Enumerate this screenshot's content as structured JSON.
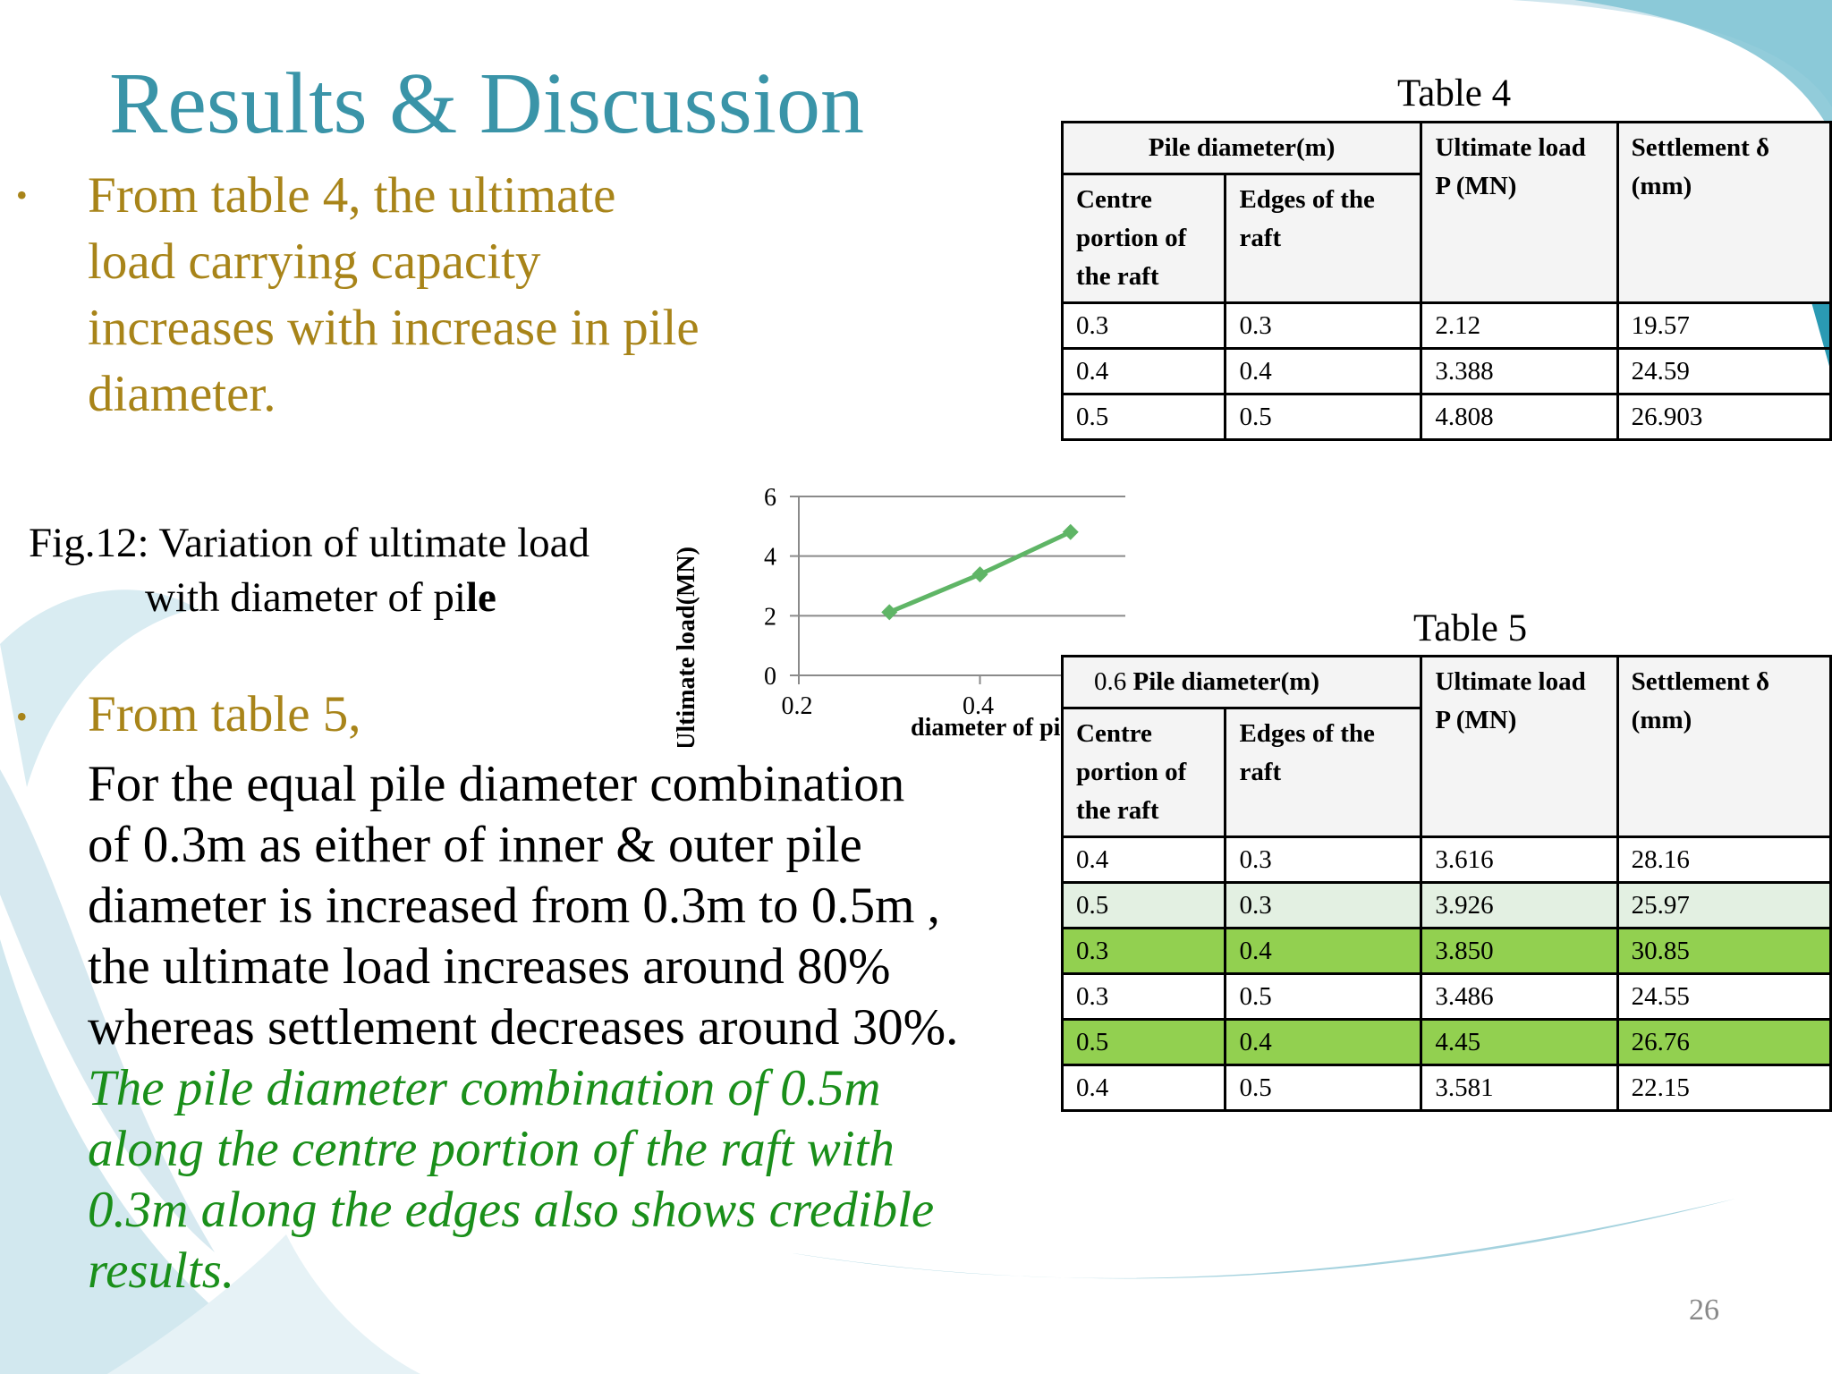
{
  "slide": {
    "title": "Results & Discussion",
    "page_number": "26",
    "bullet_glyph": "•",
    "bullet1_lines": [
      "From table 4, the ultimate",
      "load carrying capacity",
      "increases with increase in pile",
      "diameter."
    ],
    "bullet2_heading": "From table 5,",
    "body_lines": [
      "For the equal pile diameter combination",
      "of 0.3m as either of inner & outer pile",
      "diameter is increased from 0.3m to 0.5m ,",
      "the ultimate load increases around 80%",
      "whereas settlement decreases around 30%."
    ],
    "green_lines": [
      "The pile diameter combination of 0.5m",
      "along the centre portion of the raft with",
      "0.3m along the edges also shows credible",
      "results."
    ],
    "fig_caption_line1": "Fig.12: Variation of ultimate load",
    "fig_caption_line2_pre": "with diameter of pi",
    "fig_caption_line2_bold": "le"
  },
  "table4": {
    "caption": "Table 4",
    "header_group": "Pile diameter(m)",
    "col_centre": "Centre portion of the raft",
    "col_edges": "Edges of the raft",
    "col_load": "Ultimate  load P (MN)",
    "col_settle": "Settlement δ (mm)",
    "rows": [
      [
        "0.3",
        "0.3",
        "2.12",
        "19.57"
      ],
      [
        "0.4",
        "0.4",
        "3.388",
        "24.59"
      ],
      [
        "0.5",
        "0.5",
        "4.808",
        "26.903"
      ]
    ]
  },
  "table5": {
    "caption": "Table 5",
    "header_prefix": "0.6",
    "header_group": "Pile diameter(m)",
    "col_centre": "Centre portion of the raft",
    "col_edges": "Edges of the raft",
    "col_load": "Ultimate  load P (MN)",
    "col_settle": "Settlement δ (mm)",
    "rows": [
      [
        "0.4",
        "0.3",
        "3.616",
        "28.16"
      ],
      [
        "0.5",
        "0.3",
        "3.926",
        "25.97"
      ],
      [
        "0.3",
        "0.4",
        "3.850",
        "30.85"
      ],
      [
        "0.3",
        "0.5",
        "3.486",
        "24.55"
      ],
      [
        "0.5",
        "0.4",
        "4.45",
        "26.76"
      ],
      [
        "0.4",
        "0.5",
        "3.581",
        "22.15"
      ]
    ],
    "row_highlight": [
      "none",
      "light",
      "green",
      "none",
      "green",
      "none"
    ]
  },
  "colors": {
    "title": "#3a94a8",
    "bullet_text": "#a88419",
    "green_text": "#1a8f1a",
    "row_light": "#e3f0e2",
    "row_green": "#92d050",
    "chart_line": "#5fb566"
  },
  "chart_data": {
    "type": "line",
    "xlabel": "diameter of pile(m)",
    "ylabel": "Ultimate load(MN)",
    "x": [
      0.3,
      0.4,
      0.5
    ],
    "series": [
      {
        "values": [
          2.12,
          3.388,
          4.808
        ]
      }
    ],
    "xlim": [
      0.2,
      0.6
    ],
    "ylim": [
      0,
      6
    ],
    "x_ticks": [
      "0.2",
      "0.4"
    ],
    "y_ticks": [
      "0",
      "2",
      "4",
      "6"
    ],
    "grid": "horizontal",
    "marker": "diamond"
  }
}
